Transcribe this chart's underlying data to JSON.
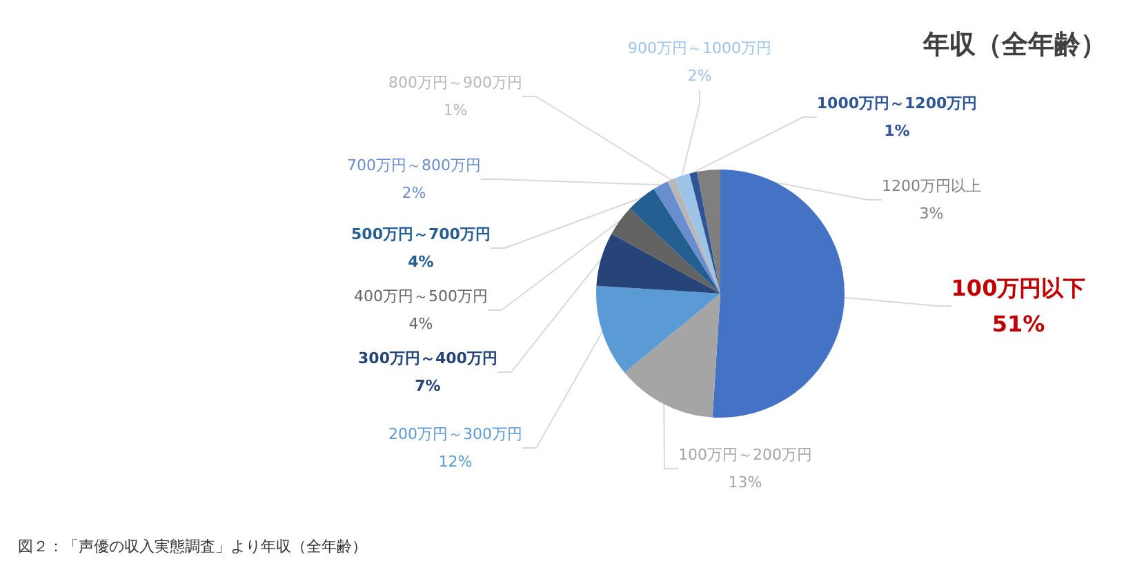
{
  "chart_data": {
    "type": "pie",
    "title": "年収（全年齢）",
    "categories": [
      "100万円以下",
      "100万円～200万円",
      "200万円～300万円",
      "300万円～400万円",
      "400万円～500万円",
      "500万円～700万円",
      "700万円～800万円",
      "800万円～900万円",
      "900万円～1000万円",
      "1000万円～1200万円",
      "1200万円以上"
    ],
    "values": [
      51,
      13,
      12,
      7,
      4,
      4,
      2,
      1,
      2,
      1,
      3
    ],
    "value_labels": [
      "51%",
      "13%",
      "12%",
      "7%",
      "4%",
      "4%",
      "2%",
      "1%",
      "2%",
      "1%",
      "3%"
    ],
    "colors": [
      "#4472c4",
      "#a5a5a5",
      "#5b9bd5",
      "#264478",
      "#636363",
      "#255e91",
      "#698ed0",
      "#b7b7b7",
      "#9dc3e6",
      "#2f5597",
      "#7f7f7f"
    ],
    "annotations": [
      "図２：「声優の収入実態調査」より年収（全年齢）"
    ],
    "legend": false
  }
}
